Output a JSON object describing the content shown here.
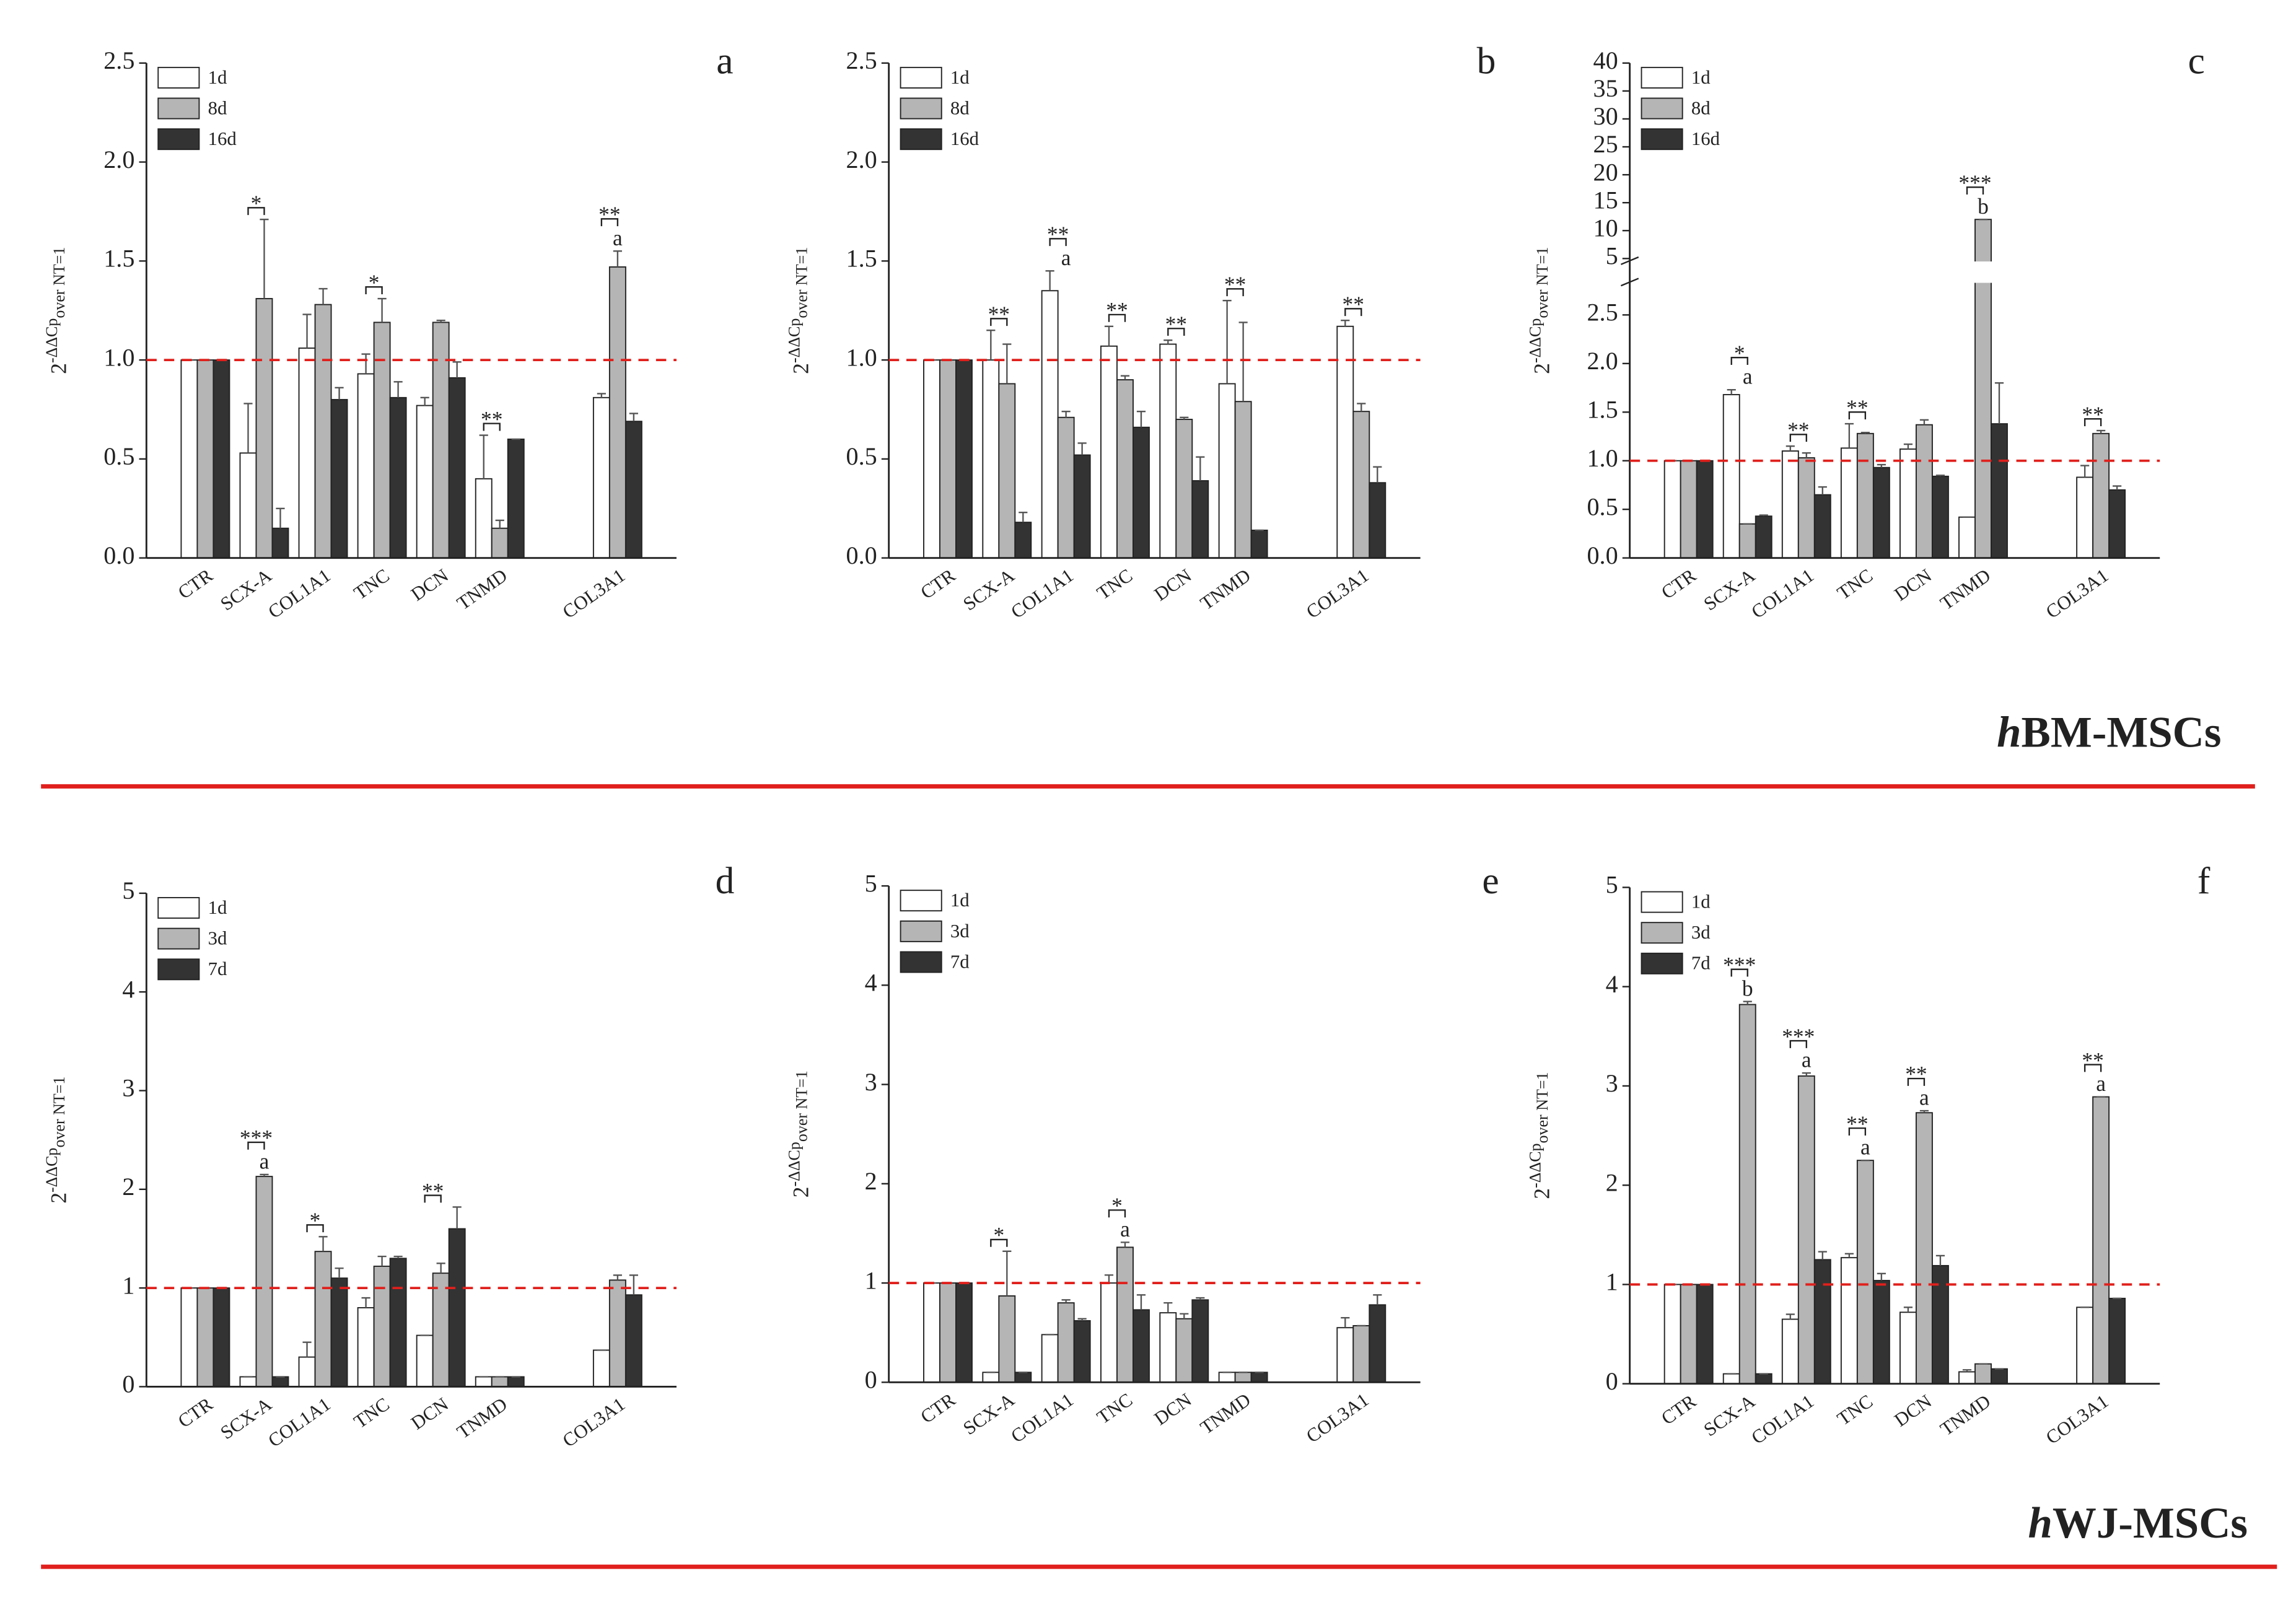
{
  "chart_data": [
    {
      "type": "bar",
      "panel": "a",
      "y_label": {
        "base": "2",
        "sup": "-ΔΔCp",
        "sub": "over NT=1"
      },
      "categories": [
        "CTR",
        "SCX-A",
        "COL1A1",
        "TNC",
        "DCN",
        "TNMD",
        null,
        "COL3A1"
      ],
      "series": [
        {
          "name": "1d",
          "color": "#ffffff",
          "values": [
            1,
            0.53,
            1.06,
            0.93,
            0.77,
            0.4,
            null,
            0.81
          ],
          "errors": [
            0,
            0.25,
            0.17,
            0.1,
            0.04,
            0.22,
            null,
            0.02
          ]
        },
        {
          "name": "8d",
          "color": "#b5b5b5",
          "values": [
            1,
            1.31,
            1.28,
            1.19,
            1.19,
            0.15,
            null,
            1.47
          ],
          "errors": [
            0,
            0.4,
            0.08,
            0.12,
            0.01,
            0.04,
            null,
            0.08
          ]
        },
        {
          "name": "16d",
          "color": "#333333",
          "values": [
            1,
            0.15,
            0.8,
            0.81,
            0.91,
            0.6,
            null,
            0.69
          ],
          "errors": [
            0,
            0.1,
            0.06,
            0.08,
            0.08,
            0,
            null,
            0.04
          ]
        }
      ],
      "ylim": [
        0,
        2.5
      ],
      "yticks": [
        {
          "value": 0,
          "label": "0.0"
        },
        {
          "value": 0.5,
          "label": "0.5"
        },
        {
          "value": 1,
          "label": "1.0"
        },
        {
          "value": 1.5,
          "label": "1.5"
        },
        {
          "value": 2,
          "label": "2.0"
        },
        {
          "value": 2.5,
          "label": "2.5"
        }
      ],
      "reference_line": 1,
      "annotations": [
        {
          "category": "SCX-A",
          "stars": "*"
        },
        {
          "category": "TNC",
          "stars": "*"
        },
        {
          "category": "TNMD",
          "stars": "**"
        },
        {
          "category": "COL3A1",
          "stars": "**",
          "letter": "a"
        }
      ]
    },
    {
      "type": "bar",
      "panel": "b",
      "y_label": {
        "base": "2",
        "sup": "-ΔΔCp",
        "sub": "over NT=1"
      },
      "categories": [
        "CTR",
        "SCX-A",
        "COL1A1",
        "TNC",
        "DCN",
        "TNMD",
        null,
        "COL3A1"
      ],
      "series": [
        {
          "name": "1d",
          "color": "#ffffff",
          "values": [
            1,
            1.0,
            1.35,
            1.07,
            1.08,
            0.88,
            null,
            1.17
          ],
          "errors": [
            0,
            0.15,
            0.1,
            0.1,
            0.02,
            0.42,
            null,
            0.03
          ]
        },
        {
          "name": "8d",
          "color": "#b5b5b5",
          "values": [
            1,
            0.88,
            0.71,
            0.9,
            0.7,
            0.79,
            null,
            0.74
          ],
          "errors": [
            0,
            0.2,
            0.03,
            0.02,
            0.01,
            0.4,
            null,
            0.04
          ]
        },
        {
          "name": "16d",
          "color": "#333333",
          "values": [
            1,
            0.18,
            0.52,
            0.66,
            0.39,
            0.14,
            null,
            0.38
          ],
          "errors": [
            0,
            0.05,
            0.06,
            0.08,
            0.12,
            0,
            null,
            0.08
          ]
        }
      ],
      "ylim": [
        0,
        2.5
      ],
      "yticks": [
        {
          "value": 0,
          "label": "0.0"
        },
        {
          "value": 0.5,
          "label": "0.5"
        },
        {
          "value": 1,
          "label": "1.0"
        },
        {
          "value": 1.5,
          "label": "1.5"
        },
        {
          "value": 2,
          "label": "2.0"
        },
        {
          "value": 2.5,
          "label": "2.5"
        }
      ],
      "reference_line": 1,
      "annotations": [
        {
          "category": "SCX-A",
          "stars": "**"
        },
        {
          "category": "COL1A1",
          "stars": "**",
          "letter": "a"
        },
        {
          "category": "TNC",
          "stars": "**"
        },
        {
          "category": "DCN",
          "stars": "**"
        },
        {
          "category": "TNMD",
          "stars": "**"
        },
        {
          "category": "COL3A1",
          "stars": "**"
        }
      ]
    },
    {
      "type": "bar",
      "panel": "c",
      "y_label": {
        "base": "2",
        "sup": "-ΔΔCp",
        "sub": "over NT=1"
      },
      "categories": [
        "CTR",
        "SCX-A",
        "COL1A1",
        "TNC",
        "DCN",
        "TNMD",
        null,
        "COL3A1"
      ],
      "series": [
        {
          "name": "1d",
          "color": "#ffffff",
          "values": [
            1,
            1.68,
            1.1,
            1.13,
            1.12,
            0.42,
            null,
            0.83
          ],
          "errors": [
            0,
            0.05,
            0.05,
            0.25,
            0.05,
            0,
            null,
            0.12
          ]
        },
        {
          "name": "8d",
          "color": "#b5b5b5",
          "values": [
            1,
            0.35,
            1.03,
            1.28,
            1.37,
            12,
            null,
            1.28
          ],
          "errors": [
            0,
            0,
            0.05,
            0.01,
            0.05,
            0,
            null,
            0.03
          ]
        },
        {
          "name": "16d",
          "color": "#333333",
          "values": [
            1,
            0.43,
            0.65,
            0.93,
            0.84,
            1.38,
            null,
            0.7
          ],
          "errors": [
            0,
            0.01,
            0.08,
            0.03,
            0.01,
            0.42,
            null,
            0.04
          ]
        }
      ],
      "ylim": [
        0,
        40
      ],
      "ybreak": [
        2.8,
        5
      ],
      "yticks": [
        {
          "value": 0,
          "label": "0.0"
        },
        {
          "value": 0.5,
          "label": "0.5"
        },
        {
          "value": 1,
          "label": "1.0"
        },
        {
          "value": 1.5,
          "label": "1.5"
        },
        {
          "value": 2,
          "label": "2.0"
        },
        {
          "value": 2.5,
          "label": "2.5"
        },
        5,
        10,
        15,
        20,
        25,
        30,
        35,
        40
      ],
      "reference_line": 1,
      "annotations": [
        {
          "category": "SCX-A",
          "stars": "*",
          "letter": "a"
        },
        {
          "category": "COL1A1",
          "stars": "**"
        },
        {
          "category": "TNC",
          "stars": "**"
        },
        {
          "category": "TNMD",
          "stars": "***",
          "letter": "b"
        },
        {
          "category": "COL3A1",
          "stars": "**"
        }
      ]
    },
    {
      "type": "bar",
      "panel": "d",
      "y_label": {
        "base": "2",
        "sup": "-ΔΔCp",
        "sub": "over NT=1"
      },
      "categories": [
        "CTR",
        "SCX-A",
        "COL1A1",
        "TNC",
        "DCN",
        "TNMD",
        null,
        "COL3A1"
      ],
      "series": [
        {
          "name": "1d",
          "color": "#ffffff",
          "values": [
            1,
            0.1,
            0.3,
            0.8,
            0.52,
            0.1,
            null,
            0.37
          ],
          "errors": [
            0,
            0,
            0.15,
            0.1,
            0,
            0,
            null,
            0
          ]
        },
        {
          "name": "3d",
          "color": "#b5b5b5",
          "values": [
            1,
            2.13,
            1.37,
            1.22,
            1.15,
            0.1,
            null,
            1.08
          ],
          "errors": [
            0,
            0.02,
            0.15,
            0.1,
            0.1,
            0,
            null,
            0.05
          ]
        },
        {
          "name": "7d",
          "color": "#333333",
          "values": [
            1,
            0.1,
            1.1,
            1.3,
            1.6,
            0.1,
            null,
            0.93
          ],
          "errors": [
            0,
            0,
            0.1,
            0.02,
            0.22,
            0,
            null,
            0.2
          ]
        }
      ],
      "ylim": [
        0,
        5
      ],
      "yticks": [
        0,
        1,
        2,
        3,
        4,
        5
      ],
      "reference_line": 1,
      "annotations": [
        {
          "category": "SCX-A",
          "stars": "***",
          "letter": "a"
        },
        {
          "category": "COL1A1",
          "stars": "*"
        },
        {
          "category": "DCN",
          "stars": "**"
        }
      ]
    },
    {
      "type": "bar",
      "panel": "e",
      "y_label": {
        "base": "2",
        "sup": "-ΔΔCp",
        "sub": "over NT=1"
      },
      "categories": [
        "CTR",
        "SCX-A",
        "COL1A1",
        "TNC",
        "DCN",
        "TNMD",
        null,
        "COL3A1"
      ],
      "series": [
        {
          "name": "1d",
          "color": "#ffffff",
          "values": [
            1,
            0.1,
            0.48,
            1.0,
            0.7,
            0.1,
            null,
            0.55
          ],
          "errors": [
            0,
            0,
            0,
            0.08,
            0.1,
            0,
            null,
            0.1
          ]
        },
        {
          "name": "3d",
          "color": "#b5b5b5",
          "values": [
            1,
            0.87,
            0.8,
            1.36,
            0.64,
            0.1,
            null,
            0.57
          ],
          "errors": [
            0,
            0.45,
            0.03,
            0.05,
            0.05,
            0,
            null,
            0
          ]
        },
        {
          "name": "7d",
          "color": "#333333",
          "values": [
            1,
            0.1,
            0.62,
            0.73,
            0.83,
            0.1,
            null,
            0.78
          ],
          "errors": [
            0,
            0,
            0.02,
            0.15,
            0.02,
            0,
            null,
            0.1
          ]
        }
      ],
      "ylim": [
        0,
        5
      ],
      "yticks": [
        0,
        1,
        2,
        3,
        4,
        5
      ],
      "reference_line": 1,
      "annotations": [
        {
          "category": "SCX-A",
          "stars": "*"
        },
        {
          "category": "TNC",
          "stars": "*",
          "letter": "a"
        }
      ]
    },
    {
      "type": "bar",
      "panel": "f",
      "y_label": {
        "base": "2",
        "sup": "-ΔΔCp",
        "sub": "over NT=1"
      },
      "categories": [
        "CTR",
        "SCX-A",
        "COL1A1",
        "TNC",
        "DCN",
        "TNMD",
        null,
        "COL3A1"
      ],
      "series": [
        {
          "name": "1d",
          "color": "#ffffff",
          "values": [
            1,
            0.1,
            0.65,
            1.27,
            0.72,
            0.12,
            null,
            0.77
          ],
          "errors": [
            0,
            0,
            0.05,
            0.04,
            0.05,
            0.02,
            null,
            0
          ]
        },
        {
          "name": "3d",
          "color": "#b5b5b5",
          "values": [
            1,
            3.82,
            3.1,
            2.25,
            2.73,
            0.2,
            null,
            2.89
          ],
          "errors": [
            0,
            0.03,
            0.03,
            0,
            0.02,
            0,
            null,
            0
          ]
        },
        {
          "name": "7d",
          "color": "#333333",
          "values": [
            1,
            0.1,
            1.25,
            1.04,
            1.19,
            0.15,
            null,
            0.86
          ],
          "errors": [
            0,
            0,
            0.08,
            0.07,
            0.1,
            0,
            null,
            0
          ]
        }
      ],
      "ylim": [
        0,
        5
      ],
      "yticks": [
        0,
        1,
        2,
        3,
        4,
        5
      ],
      "reference_line": 1,
      "annotations": [
        {
          "category": "SCX-A",
          "stars": "***",
          "letter": "b"
        },
        {
          "category": "COL1A1",
          "stars": "***",
          "letter": "a"
        },
        {
          "category": "TNC",
          "stars": "**",
          "letter": "a"
        },
        {
          "category": "DCN",
          "stars": "**",
          "letter": "a"
        },
        {
          "category": "COL3A1",
          "stars": "**",
          "letter": "a"
        }
      ]
    }
  ],
  "sections": [
    {
      "prefix": "h",
      "name": "BM-MSCs"
    },
    {
      "prefix": "h",
      "name": "WJ-MSCs"
    }
  ]
}
